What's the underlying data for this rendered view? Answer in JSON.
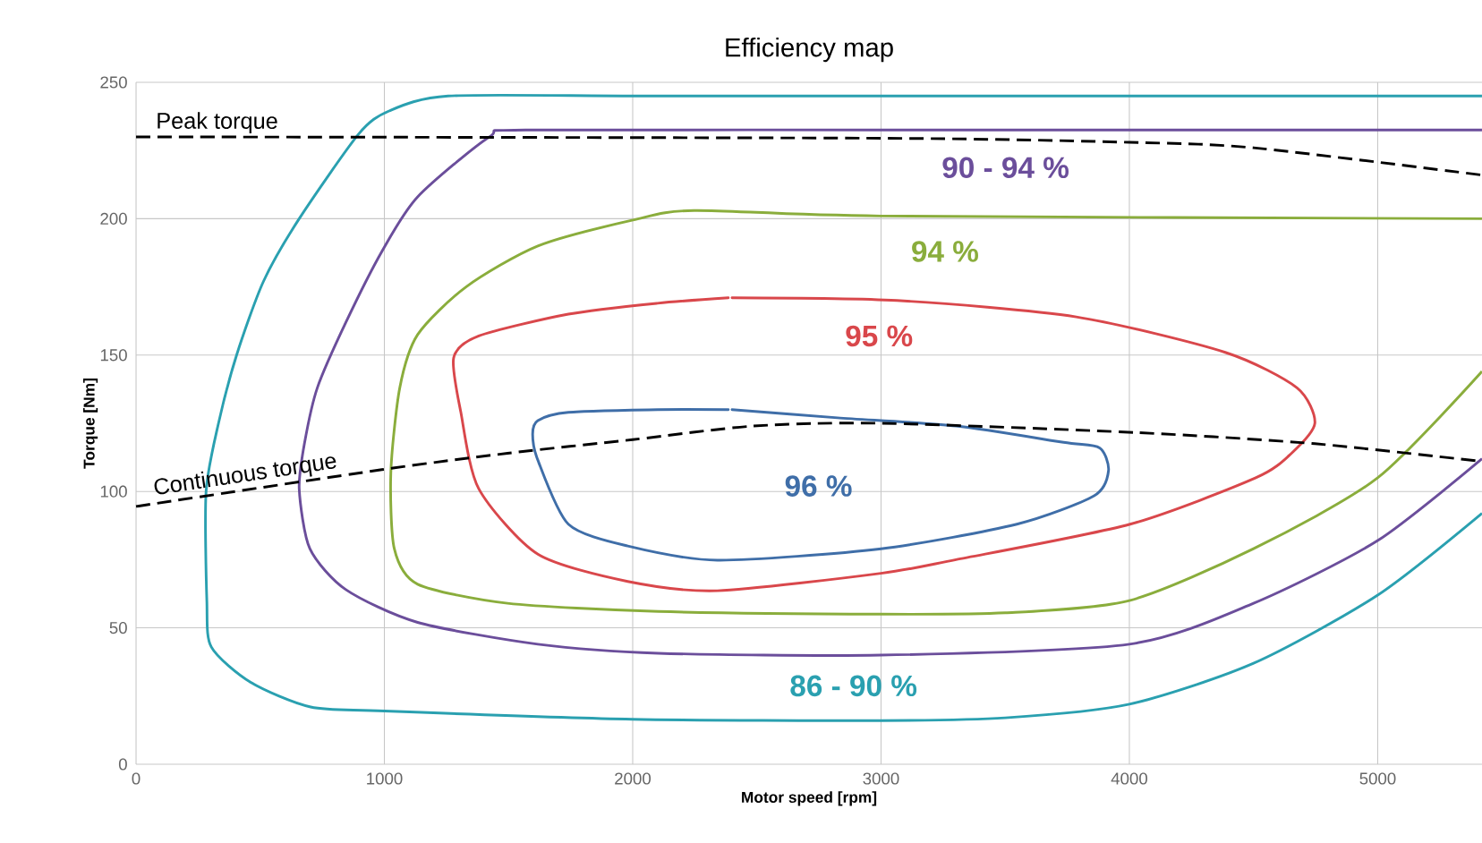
{
  "chart_data": {
    "type": "line",
    "title": "Efficiency map",
    "xlabel": "Motor speed [rpm]",
    "ylabel": "Torque [Nm]",
    "xlim": [
      0,
      5420
    ],
    "ylim": [
      0,
      250
    ],
    "xticks": [
      0,
      1000,
      2000,
      3000,
      4000,
      5000
    ],
    "yticks": [
      0,
      50,
      100,
      150,
      200,
      250
    ],
    "grid": true,
    "marker": "none",
    "series": [
      {
        "name": "86 - 90 %",
        "color": "#2aa0b0",
        "x": [
          5420,
          3000,
          2000,
          1257,
          1019,
          896,
          657,
          513,
          405,
          332,
          282,
          285,
          303,
          462,
          703,
          1000,
          2000,
          3000,
          3500,
          4000,
          4500,
          5000,
          5420
        ],
        "values": [
          245,
          245,
          245,
          245,
          239.5,
          231,
          200,
          177,
          150,
          125,
          100,
          60,
          43,
          30,
          21,
          19.5,
          16.5,
          16,
          17,
          22,
          37,
          62,
          92
        ]
      },
      {
        "name": "90 - 94 %",
        "color": "#6b4e9b",
        "x": [
          5420,
          3000,
          1568,
          1423,
          1134,
          990,
          845,
          730,
          679,
          657,
          700,
          845,
          1134,
          1618,
          2103,
          3000,
          4000,
          4500,
          5000,
          5420
        ],
        "values": [
          232.5,
          232.5,
          232.5,
          230,
          208,
          188,
          162,
          138,
          118,
          101,
          79,
          64,
          52,
          44,
          40.7,
          40,
          44,
          59,
          82,
          112
        ]
      },
      {
        "name": "94 %",
        "color": "#8aad3c",
        "x": [
          5420,
          3000,
          2247,
          2001,
          1618,
          1329,
          1134,
          1062,
          1026,
          1040,
          1134,
          1496,
          2103,
          3000,
          3500,
          4000,
          4500,
          5000,
          5420
        ],
        "values": [
          200,
          201,
          203,
          199.5,
          190,
          175,
          157.5,
          138,
          107,
          79,
          66,
          59,
          56,
          55,
          55.5,
          60,
          79,
          105,
          144
        ]
      },
      {
        "name": "95 %",
        "color": "#d9474b",
        "x": [
          2400,
          3064,
          3786,
          4386,
          4675,
          4747,
          4653,
          4509,
          4003,
          3302,
          3000,
          2341,
          1980,
          1618,
          1380,
          1308,
          1279,
          1380,
          1741,
          2100,
          2385
        ],
        "values": [
          171,
          170,
          164,
          151,
          138,
          125,
          114,
          105,
          88,
          75,
          70,
          63.6,
          67,
          77,
          101,
          129,
          149,
          157,
          165,
          169,
          171
        ]
      },
      {
        "name": "96 %",
        "color": "#3f6ea8",
        "x": [
          2400,
          2825,
          3302,
          3735,
          3880,
          3916,
          3858,
          3547,
          3000,
          2341,
          1980,
          1741,
          1618,
          1597,
          1618,
          1741,
          2100,
          2385
        ],
        "values": [
          130,
          127,
          124,
          118,
          116,
          107.6,
          98.4,
          88,
          79,
          74.8,
          80,
          88,
          111.5,
          121,
          126,
          129,
          130,
          130
        ]
      },
      {
        "name": "Peak torque",
        "color": "#000000",
        "line_style": "dashed",
        "x": [
          0,
          3000,
          4000,
          4500,
          5420
        ],
        "values": [
          230,
          229.5,
          228,
          226,
          216
        ]
      },
      {
        "name": "Continuous torque",
        "color": "#000000",
        "line_style": "dashed",
        "x": [
          0,
          990,
          1496,
          2000,
          2486,
          3000,
          4026,
          4747,
          5420
        ],
        "values": [
          94.5,
          108,
          114,
          119,
          124,
          125,
          121.6,
          117.5,
          111
        ]
      }
    ]
  }
}
